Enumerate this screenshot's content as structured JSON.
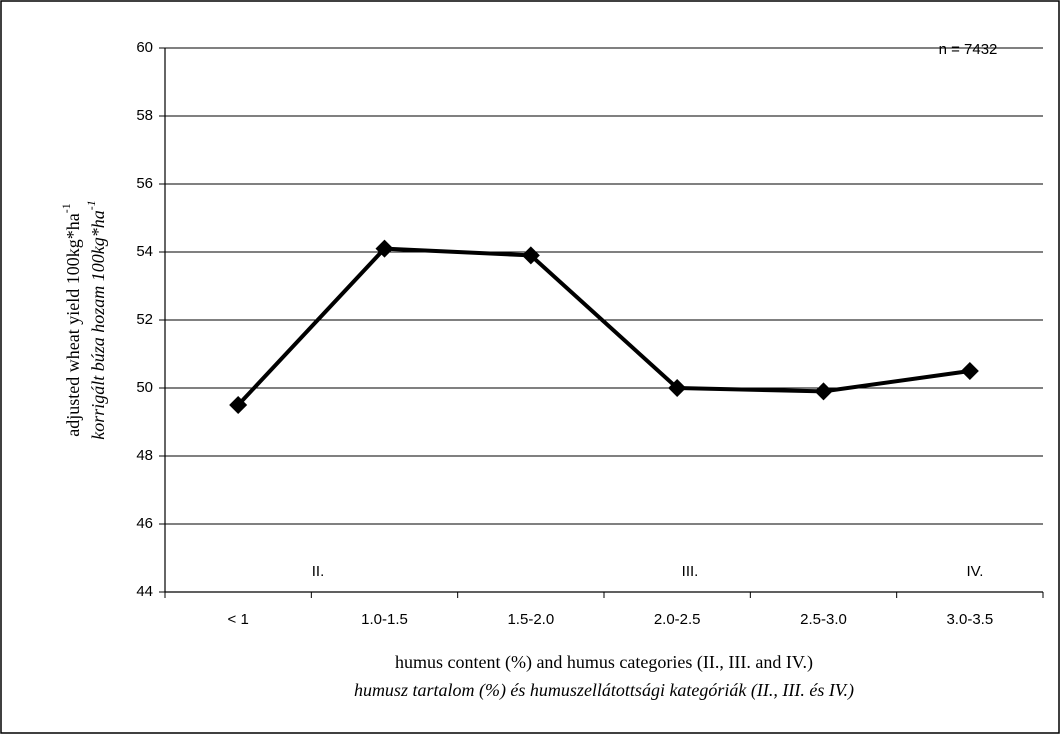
{
  "chart_data": {
    "type": "line",
    "y_label": [
      {
        "text": "adjusted wheat yield 100kg*ha",
        "sup": "-1"
      },
      {
        "text": "korrigált búza hozam 100kg*ha",
        "sup": "-1"
      }
    ],
    "x_label": [
      "humus content (%) and humus categories (II., III. and IV.)",
      "humusz tartalom (%) és humuszellátottsági kategóriák (II., III. és IV.)"
    ],
    "categories": [
      "< 1",
      "1.0-1.5",
      "1.5-2.0",
      "2.0-2.5",
      "2.5-3.0",
      "3.0-3.5"
    ],
    "series": [
      {
        "name": "adjusted wheat yield",
        "color": "#000000",
        "values": [
          49.5,
          54.1,
          53.9,
          50.0,
          49.9,
          50.5
        ]
      }
    ],
    "ylim": [
      44,
      60
    ],
    "yticks": [
      44,
      46,
      48,
      50,
      52,
      54,
      56,
      58,
      60
    ],
    "grid": true,
    "annotations": [
      "n = 7432",
      "II.",
      "III.",
      "IV."
    ]
  }
}
